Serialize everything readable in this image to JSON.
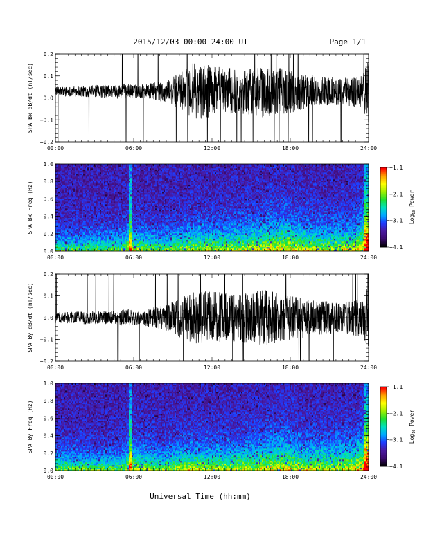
{
  "header": {
    "title": "2015/12/03  00:00−24:00 UT",
    "page": "Page 1/1"
  },
  "footer": {
    "xlabel": "Universal Time (hh:mm)"
  },
  "colorbar": {
    "tick_labels": [
      "−1.1",
      "−2.1",
      "−3.1",
      "−4.1"
    ],
    "label": "Log",
    "label_sub": "10",
    "label_tail": " Power",
    "colors": [
      "#000000",
      "#3b0a6e",
      "#4a1aa0",
      "#1e3cff",
      "#00a8ff",
      "#00e0c0",
      "#20e030",
      "#a0f000",
      "#ffff00",
      "#ffa000",
      "#ff0000"
    ]
  },
  "chart_data": [
    {
      "type": "line",
      "ylabel": "SPA Bx dB/dt (nT/sec)",
      "xlim": [
        "00:00",
        "24:00"
      ],
      "ylim": [
        -0.2,
        0.2
      ],
      "x_ticks": [
        "00:00",
        "06:00",
        "12:00",
        "18:00",
        "24:00"
      ],
      "y_ticks": [
        "0.2",
        "0.1",
        "0.0",
        "−0.1",
        "−0.2"
      ],
      "y_tick_values": [
        0.2,
        0.1,
        0.0,
        -0.1,
        -0.2
      ],
      "baseline": 0.03,
      "envelope_hours": [
        0,
        2,
        4,
        5.5,
        6,
        7,
        8.5,
        9.5,
        10.5,
        12,
        14,
        16,
        18,
        20,
        22,
        23.5,
        24
      ],
      "envelope_amplitude": [
        0.02,
        0.025,
        0.03,
        0.035,
        0.03,
        0.035,
        0.05,
        0.08,
        0.13,
        0.12,
        0.1,
        0.12,
        0.1,
        0.07,
        0.06,
        0.08,
        0.15
      ],
      "line_color": "#000000"
    },
    {
      "type": "heatmap",
      "ylabel": "SPA Bx Freq (Hz)",
      "xlim": [
        "00:00",
        "24:00"
      ],
      "ylim": [
        0.0,
        1.0
      ],
      "x_ticks": [
        "00:00",
        "06:00",
        "12:00",
        "18:00",
        "24:00"
      ],
      "y_ticks": [
        "1.0",
        "0.8",
        "0.6",
        "0.4",
        "0.2",
        "0.0"
      ],
      "y_tick_values": [
        1.0,
        0.8,
        0.6,
        0.4,
        0.2,
        0.0
      ],
      "zlim": [
        -4.1,
        -1.1
      ],
      "z_label": "Log10 Power",
      "activity_hours": [
        0,
        5,
        5.7,
        8,
        10,
        12,
        14,
        16,
        17.5,
        19,
        21,
        23,
        24
      ],
      "activity_level": [
        0.25,
        0.3,
        0.45,
        0.3,
        0.45,
        0.5,
        0.5,
        0.6,
        0.7,
        0.55,
        0.5,
        0.55,
        0.95
      ]
    },
    {
      "type": "line",
      "ylabel": "SPA By dB/dt (nT/sec)",
      "xlim": [
        "00:00",
        "24:00"
      ],
      "ylim": [
        -0.2,
        0.2
      ],
      "x_ticks": [
        "00:00",
        "06:00",
        "12:00",
        "18:00",
        "24:00"
      ],
      "y_ticks": [
        "0.2",
        "0.1",
        "0.0",
        "−0.1",
        "−0.2"
      ],
      "y_tick_values": [
        0.2,
        0.1,
        0.0,
        -0.1,
        -0.2
      ],
      "baseline": 0.0,
      "envelope_hours": [
        0,
        2,
        4,
        5.5,
        6,
        7,
        8.5,
        9.5,
        10.5,
        12,
        14,
        16,
        18,
        20,
        22,
        23.5,
        24
      ],
      "envelope_amplitude": [
        0.025,
        0.03,
        0.03,
        0.04,
        0.035,
        0.04,
        0.06,
        0.09,
        0.12,
        0.12,
        0.11,
        0.13,
        0.1,
        0.08,
        0.07,
        0.09,
        0.16
      ],
      "line_color": "#000000"
    },
    {
      "type": "heatmap",
      "ylabel": "SPA By Freq (Hz)",
      "xlim": [
        "00:00",
        "24:00"
      ],
      "ylim": [
        0.0,
        1.0
      ],
      "x_ticks": [
        "00:00",
        "06:00",
        "12:00",
        "18:00",
        "24:00"
      ],
      "y_ticks": [
        "1.0",
        "0.8",
        "0.6",
        "0.4",
        "0.2",
        "0.0"
      ],
      "y_tick_values": [
        1.0,
        0.8,
        0.6,
        0.4,
        0.2,
        0.0
      ],
      "zlim": [
        -4.1,
        -1.1
      ],
      "z_label": "Log10 Power",
      "activity_hours": [
        0,
        5,
        5.7,
        8,
        10,
        12,
        14,
        16,
        17.5,
        19,
        21,
        23,
        24
      ],
      "activity_level": [
        0.3,
        0.3,
        0.5,
        0.35,
        0.5,
        0.5,
        0.5,
        0.6,
        0.7,
        0.55,
        0.55,
        0.6,
        0.95
      ]
    }
  ]
}
